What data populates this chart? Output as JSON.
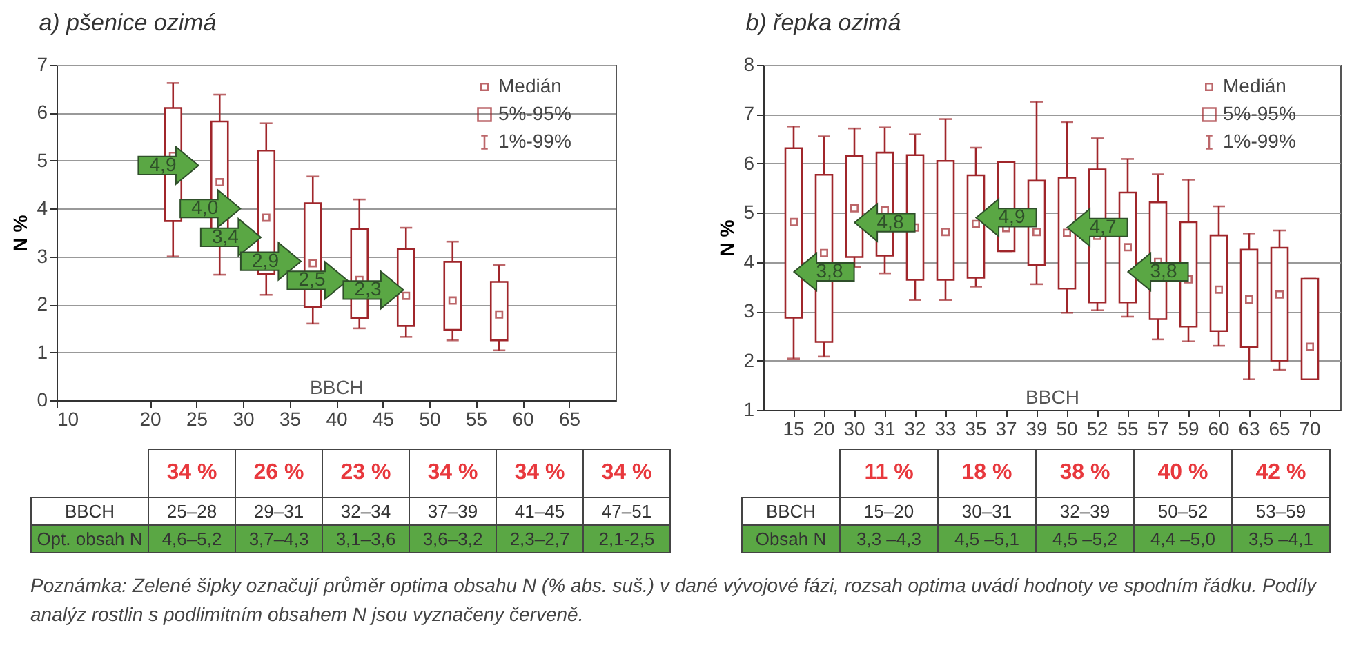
{
  "chart_data": [
    {
      "type": "box",
      "title": "a) pšenice ozimá",
      "xlabel": "BBCH",
      "ylabel": "N %",
      "xlim": [
        10,
        70
      ],
      "xticks": [
        10,
        20,
        25,
        30,
        35,
        40,
        45,
        50,
        55,
        60,
        65
      ],
      "ylim": [
        0,
        7
      ],
      "yticks": [
        0,
        1,
        2,
        3,
        4,
        5,
        6,
        7
      ],
      "grid": "y",
      "series": [
        {
          "color": "#a0262b",
          "x": [
            22.5,
            27.5,
            32.5,
            37.5,
            42.5,
            47.5,
            52.5,
            57.5
          ],
          "boxes": [
            {
              "low": 3.0,
              "q1": 3.74,
              "median": 5.1,
              "q3": 6.1,
              "high": 6.62
            },
            {
              "low": 2.62,
              "q1": 3.5,
              "median": 4.55,
              "q3": 5.82,
              "high": 6.38
            },
            {
              "low": 2.2,
              "q1": 2.63,
              "median": 3.81,
              "q3": 5.21,
              "high": 5.78
            },
            {
              "low": 1.6,
              "q1": 1.94,
              "median": 2.86,
              "q3": 4.11,
              "high": 4.67
            },
            {
              "low": 1.5,
              "q1": 1.71,
              "median": 2.51,
              "q3": 3.57,
              "high": 4.19
            },
            {
              "low": 1.32,
              "q1": 1.55,
              "median": 2.18,
              "q3": 3.15,
              "high": 3.6
            },
            {
              "low": 1.25,
              "q1": 1.47,
              "median": 2.08,
              "q3": 2.89,
              "high": 3.31
            },
            {
              "low": 1.04,
              "q1": 1.25,
              "median": 1.79,
              "q3": 2.47,
              "high": 2.82
            }
          ]
        }
      ],
      "annotations": [
        {
          "text": "4,9",
          "x": 22,
          "y": 4.9
        },
        {
          "text": "4,0",
          "x": 26.5,
          "y": 4.0
        },
        {
          "text": "3,4",
          "x": 28.7,
          "y": 3.4
        },
        {
          "text": "2,9",
          "x": 33,
          "y": 2.9
        },
        {
          "text": "2,5",
          "x": 38,
          "y": 2.5
        },
        {
          "text": "2,3",
          "x": 44,
          "y": 2.3
        },
        "Medián",
        "5%-95%",
        "1%-99%",
        "34 %",
        "26 %",
        "23 %",
        "34 %",
        "34 %",
        "34 %",
        "BBCH",
        "25–28",
        "29–31",
        "32–34",
        "37–39",
        "41–45",
        "47–51",
        "Opt. obsah N",
        "4,6–5,2",
        "3,7–4,3",
        "3,1–3,6",
        "3,6–3,2",
        "2,3–2,7",
        "2,1-2,5"
      ]
    },
    {
      "type": "box",
      "title": "b) řepka ozimá",
      "xlabel": "BBCH",
      "ylabel": "N %",
      "categories": [
        "15",
        "20",
        "30",
        "31",
        "32",
        "33",
        "35",
        "37",
        "39",
        "50",
        "52",
        "55",
        "57",
        "59",
        "60",
        "63",
        "65",
        "70"
      ],
      "ylim": [
        1,
        8
      ],
      "yticks": [
        1,
        2,
        3,
        4,
        5,
        6,
        7,
        8
      ],
      "grid": "y",
      "series": [
        {
          "color": "#a0262b",
          "boxes": [
            {
              "low": 2.04,
              "q1": 2.87,
              "median": 4.81,
              "q3": 6.31,
              "high": 6.75
            },
            {
              "low": 2.08,
              "q1": 2.38,
              "median": 4.18,
              "q3": 5.77,
              "high": 6.55
            },
            {
              "low": 3.9,
              "q1": 4.1,
              "median": 5.09,
              "q3": 6.15,
              "high": 6.71
            },
            {
              "low": 3.77,
              "q1": 4.13,
              "median": 5.05,
              "q3": 6.22,
              "high": 6.73
            },
            {
              "low": 3.23,
              "q1": 3.64,
              "median": 4.7,
              "q3": 6.17,
              "high": 6.59
            },
            {
              "low": 3.23,
              "q1": 3.64,
              "median": 4.61,
              "q3": 6.05,
              "high": 6.9
            },
            {
              "low": 3.5,
              "q1": 3.68,
              "median": 4.77,
              "q3": 5.76,
              "high": 6.32
            },
            {
              "low": 4.22,
              "q1": 4.22,
              "median": 4.69,
              "q3": 6.03,
              "high": 6.03
            },
            {
              "low": 3.55,
              "q1": 3.94,
              "median": 4.61,
              "q3": 5.65,
              "high": 7.25
            },
            {
              "low": 2.97,
              "q1": 3.46,
              "median": 4.59,
              "q3": 5.71,
              "high": 6.84
            },
            {
              "low": 3.02,
              "q1": 3.18,
              "median": 4.53,
              "q3": 5.88,
              "high": 6.51
            },
            {
              "low": 2.89,
              "q1": 3.18,
              "median": 4.3,
              "q3": 5.41,
              "high": 6.09
            },
            {
              "low": 2.43,
              "q1": 2.84,
              "median": 4.0,
              "q3": 5.21,
              "high": 5.78
            },
            {
              "low": 2.39,
              "q1": 2.69,
              "median": 3.65,
              "q3": 4.81,
              "high": 5.67
            },
            {
              "low": 2.3,
              "q1": 2.6,
              "median": 3.44,
              "q3": 4.54,
              "high": 5.13
            },
            {
              "low": 1.62,
              "q1": 2.27,
              "median": 3.24,
              "q3": 4.25,
              "high": 4.58
            },
            {
              "low": 1.81,
              "q1": 2.0,
              "median": 3.34,
              "q3": 4.29,
              "high": 4.64
            },
            {
              "low": 1.62,
              "q1": 1.62,
              "median": 2.28,
              "q3": 3.66,
              "high": 3.66
            }
          ]
        }
      ],
      "annotations": [
        {
          "text": "3,8",
          "x": "20",
          "y": 3.8
        },
        {
          "text": "4,8",
          "x": "31",
          "y": 4.8
        },
        {
          "text": "4,9",
          "x": "37",
          "y": 4.9
        },
        {
          "text": "4,7",
          "x": "52",
          "y": 4.7
        },
        {
          "text": "3,8",
          "x": "57",
          "y": 3.8
        },
        "Medián",
        "5%-95%",
        "1%-99%",
        "11 %",
        "18 %",
        "38 %",
        "40 %",
        "42 %",
        "BBCH",
        "15–20",
        "30–31",
        "32–39",
        "50–52",
        "53–59",
        "Obsah N",
        "3,3 –4,3",
        "4,5 –5,1",
        "4,5 –5,2",
        "4,4 –5,0",
        "3,5 –4,1"
      ]
    },
    {
      "type": "other",
      "annotations": [
        "Poznámka: Zelené šipky označují průměr optima obsahu N (% abs. suš.) v dané vývojové fázi, rozsah optima uvádí hodnoty ve spodním řádku. Podíly analýz rostlin s podlimitním obsahem N jsou vyznačeny červeně."
      ]
    }
  ]
}
